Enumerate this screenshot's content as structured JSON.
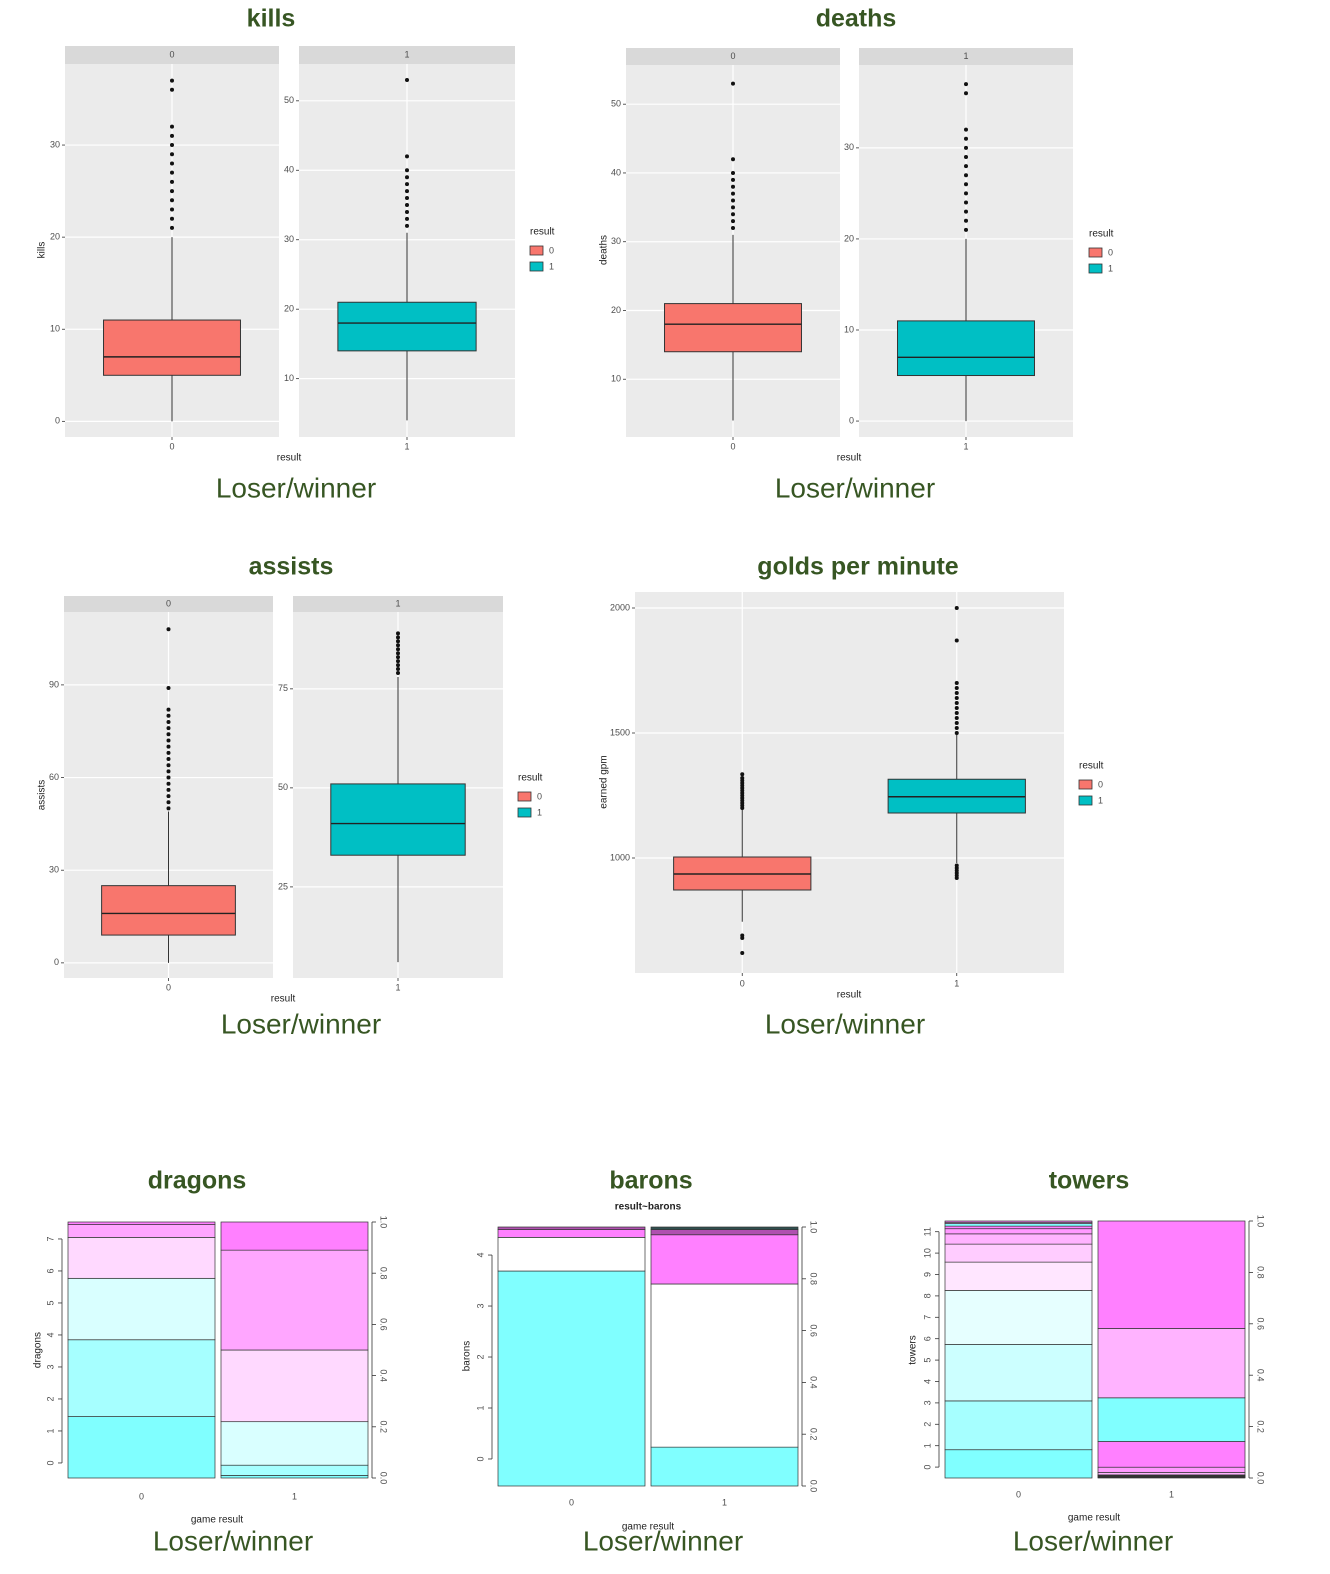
{
  "chart_data": [
    {
      "type": "boxplot",
      "title": "kills",
      "caption": "Loser/winner",
      "x_label": "result",
      "y_label": "kills",
      "legend_title": "result",
      "facets": [
        "0",
        "1"
      ],
      "categories": [
        "0",
        "1"
      ],
      "series": [
        {
          "name": "0",
          "color": "#f8766d",
          "ylim": [
            -1.7,
            38.8
          ],
          "yticks": [
            0,
            10,
            20,
            30
          ],
          "whisker_low": 0,
          "q1": 5,
          "median": 7,
          "q3": 11,
          "whisker_high": 20,
          "outliers": [
            21,
            22,
            23,
            24,
            25,
            26,
            27,
            28,
            29,
            30,
            31,
            32,
            36,
            37
          ]
        },
        {
          "name": "1",
          "color": "#00bfc4",
          "ylim": [
            1.6,
            55.3
          ],
          "yticks": [
            10,
            20,
            30,
            40,
            50
          ],
          "whisker_low": 4,
          "q1": 14,
          "median": 18,
          "q3": 21,
          "whisker_high": 31,
          "outliers": [
            32,
            33,
            34,
            35,
            36,
            37,
            38,
            39,
            40,
            42,
            53
          ]
        }
      ]
    },
    {
      "type": "boxplot",
      "title": "deaths",
      "caption": "Loser/winner",
      "x_label": "result",
      "y_label": "deaths",
      "legend_title": "result",
      "facets": [
        "0",
        "1"
      ],
      "categories": [
        "0",
        "1"
      ],
      "series": [
        {
          "name": "0",
          "color": "#f8766d",
          "ylim": [
            1.6,
            55.7
          ],
          "yticks": [
            10,
            20,
            30,
            40,
            50
          ],
          "whisker_low": 4,
          "q1": 14,
          "median": 18,
          "q3": 21,
          "whisker_high": 31,
          "outliers": [
            32,
            33,
            34,
            35,
            36,
            37,
            38,
            39,
            40,
            42,
            53
          ]
        },
        {
          "name": "1",
          "color": "#00bfc4",
          "ylim": [
            -1.75,
            39.1
          ],
          "yticks": [
            0,
            10,
            20,
            30
          ],
          "whisker_low": 0,
          "q1": 5,
          "median": 7,
          "q3": 11,
          "whisker_high": 20,
          "outliers": [
            21,
            22,
            23,
            24,
            25,
            26,
            27,
            28,
            29,
            30,
            31,
            32,
            36,
            37
          ]
        }
      ]
    },
    {
      "type": "boxplot",
      "title": "assists",
      "caption": "Loser/winner",
      "x_label": "result",
      "y_label": "assists",
      "legend_title": "result",
      "facets": [
        "0",
        "1"
      ],
      "categories": [
        "0",
        "1"
      ],
      "series": [
        {
          "name": "0",
          "color": "#f8766d",
          "ylim": [
            -4.9,
            113.6
          ],
          "yticks": [
            0,
            30,
            60,
            90
          ],
          "whisker_low": 0,
          "q1": 9,
          "median": 16,
          "q3": 25,
          "whisker_high": 49,
          "outliers": [
            50,
            52,
            54,
            56,
            58,
            60,
            62,
            64,
            66,
            68,
            70,
            72,
            74,
            76,
            78,
            80,
            82,
            89,
            108
          ]
        },
        {
          "name": "1",
          "color": "#00bfc4",
          "ylim": [
            2,
            94.4
          ],
          "yticks": [
            25,
            50,
            75
          ],
          "whisker_low": 6,
          "q1": 33,
          "median": 41,
          "q3": 51,
          "whisker_high": 78,
          "outliers": [
            79,
            80,
            81,
            82,
            83,
            84,
            85,
            86,
            87,
            88,
            89
          ]
        }
      ]
    },
    {
      "type": "boxplot",
      "title": "golds per minute",
      "caption": "Loser/winner",
      "x_label": "result",
      "y_label": "earned gpm",
      "legend_title": "result",
      "categories": [
        "0",
        "1"
      ],
      "ylim": [
        540,
        2064
      ],
      "yticks": [
        1000,
        1500,
        2000
      ],
      "series": [
        {
          "name": "0",
          "color": "#f8766d",
          "whisker_low": 745,
          "q1": 872,
          "median": 936,
          "q3": 1004,
          "whisker_high": 1195,
          "outliers": [
            620,
            680,
            690,
            1200,
            1210,
            1220,
            1230,
            1240,
            1250,
            1260,
            1270,
            1280,
            1290,
            1300,
            1310,
            1320,
            1335
          ]
        },
        {
          "name": "1",
          "color": "#00bfc4",
          "whisker_low": 980,
          "q1": 1180,
          "median": 1245,
          "q3": 1315,
          "whisker_high": 1495,
          "outliers": [
            920,
            930,
            940,
            950,
            960,
            970,
            1500,
            1520,
            1540,
            1560,
            1580,
            1600,
            1620,
            1640,
            1660,
            1680,
            1700,
            1870,
            2000
          ]
        }
      ]
    },
    {
      "type": "spine",
      "title": "dragons",
      "caption": "Loser/winner",
      "x_label": "game result",
      "y_label": "dragons",
      "categories": [
        "0",
        "1"
      ],
      "ylim": [
        -0.47,
        7.53
      ],
      "yticks": [
        0,
        1,
        2,
        3,
        4,
        5,
        6,
        7
      ],
      "y2lim": [
        0,
        1
      ],
      "y2ticks": [
        {
          "value": 0,
          "label": "0.0"
        },
        0.2,
        0.4,
        0.6,
        0.8,
        {
          "value": 1,
          "label": "1.0"
        }
      ],
      "series": [
        {
          "color": "#80ffff",
          "values": [
            0.24,
            0.01
          ]
        },
        {
          "color": "#a6ffff",
          "values": [
            0.3,
            0.04
          ]
        },
        {
          "color": "#d9ffff",
          "values": [
            0.24,
            0.17
          ]
        },
        {
          "color": "#ffd9ff",
          "values": [
            0.16,
            0.28
          ]
        },
        {
          "color": "#ffa6ff",
          "values": [
            0.05,
            0.39
          ]
        },
        {
          "color": "#ff80ff",
          "values": [
            0.01,
            0.11
          ]
        }
      ]
    },
    {
      "type": "spine",
      "title": "barons",
      "subtitle": "result~barons",
      "caption": "Loser/winner",
      "x_label": "game result",
      "y_label": "barons",
      "categories": [
        "0",
        "1"
      ],
      "ylim": [
        -0.53,
        4.55
      ],
      "yticks": [
        0,
        1,
        2,
        3,
        4
      ],
      "y2lim": [
        0,
        1
      ],
      "y2ticks": [
        {
          "value": 0,
          "label": "0.0"
        },
        0.2,
        0.4,
        0.6,
        0.8,
        {
          "value": 1,
          "label": "1.0"
        }
      ],
      "series": [
        {
          "color": "#80ffff",
          "values": [
            0.83,
            0.15
          ]
        },
        {
          "color": "#ffffff",
          "values": [
            0.13,
            0.63
          ]
        },
        {
          "color": "#ff80ff",
          "values": [
            0.03,
            0.19
          ]
        },
        {
          "color": "#b050b0",
          "values": [
            0.01,
            0.02
          ]
        },
        {
          "color": "#305050",
          "values": [
            0,
            0.01
          ]
        }
      ]
    },
    {
      "type": "spine",
      "title": "towers",
      "caption": "Loser/winner",
      "x_label": "game result",
      "y_label": "towers",
      "categories": [
        "0",
        "1"
      ],
      "ylim": [
        -0.51,
        11.5
      ],
      "yticks": [
        0,
        1,
        2,
        3,
        4,
        5,
        6,
        7,
        8,
        9,
        10,
        11
      ],
      "y2lim": [
        0,
        1
      ],
      "y2ticks": [
        {
          "value": 0,
          "label": "0.0"
        },
        0.2,
        0.4,
        0.6,
        0.8,
        {
          "value": 1,
          "label": "1.0"
        }
      ],
      "series": [
        {
          "color": "#80ffff",
          "values": [
            0.11,
            0.002
          ]
        },
        {
          "color": "#a6ffff",
          "values": [
            0.19,
            0.002
          ]
        },
        {
          "color": "#ccffff",
          "values": [
            0.22,
            0.002
          ]
        },
        {
          "color": "#e6ffff",
          "values": [
            0.21,
            0.002
          ]
        },
        {
          "color": "#ffe6ff",
          "values": [
            0.11,
            0.002
          ]
        },
        {
          "color": "#ffccff",
          "values": [
            0.07,
            0.002
          ]
        },
        {
          "color": "#ffb3ff",
          "values": [
            0.04,
            0.01
          ]
        },
        {
          "color": "#ff99ff",
          "values": [
            0.02,
            0.02
          ]
        },
        {
          "color": "#ff80ff",
          "values": [
            0.01,
            0.1
          ]
        },
        {
          "color": "#80ffff",
          "values": [
            0.01,
            0.17
          ]
        },
        {
          "color": "#ffb3ff",
          "values": [
            0.005,
            0.27
          ]
        },
        {
          "color": "#ff80ff",
          "values": [
            0.005,
            0.418
          ]
        }
      ]
    }
  ]
}
